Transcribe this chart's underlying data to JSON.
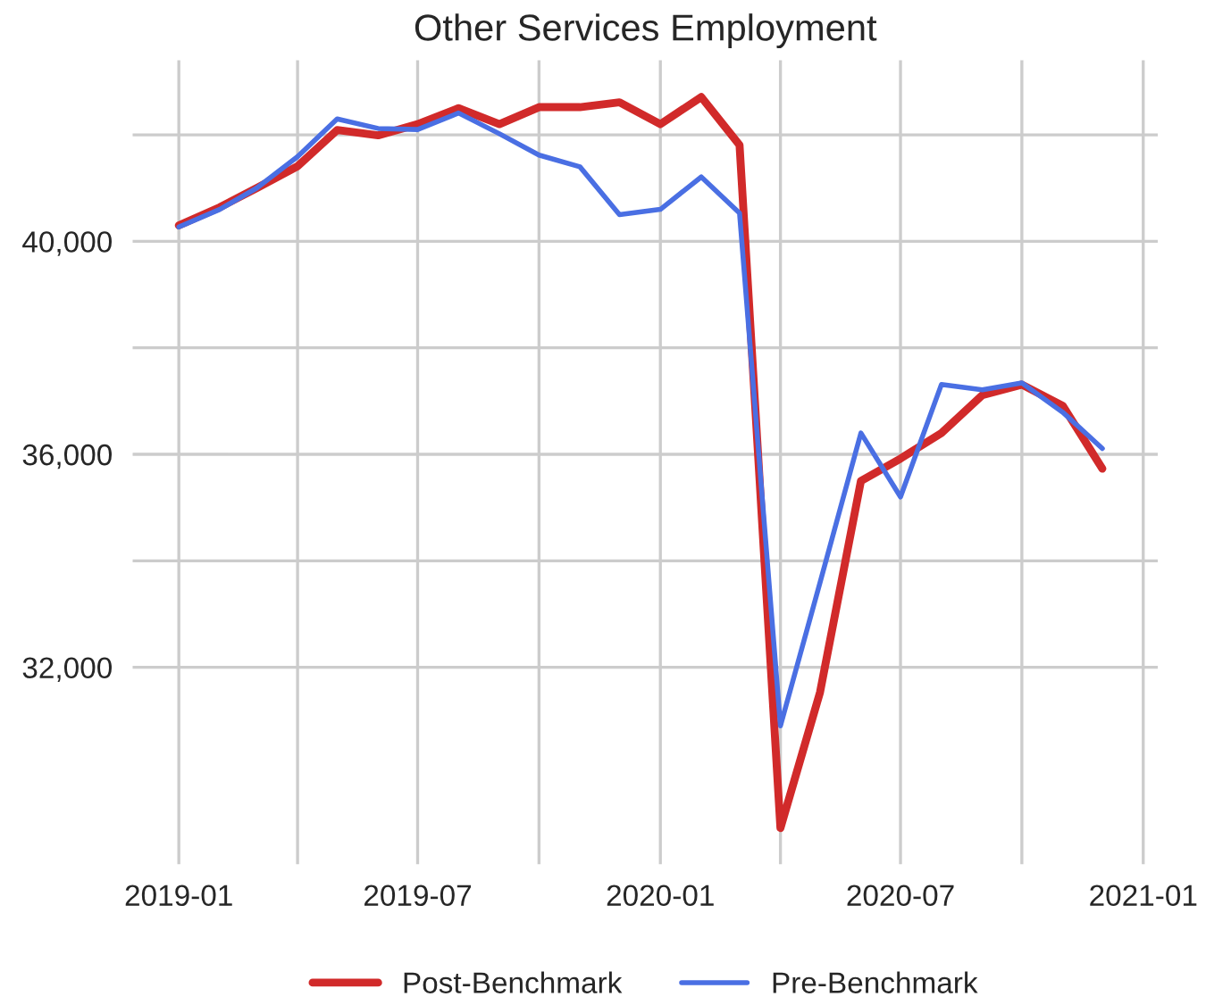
{
  "chart_data": {
    "type": "line",
    "title": "Other Services Employment",
    "x": [
      "2019-01",
      "2019-02",
      "2019-03",
      "2019-04",
      "2019-05",
      "2019-06",
      "2019-07",
      "2019-08",
      "2019-09",
      "2019-10",
      "2019-11",
      "2019-12",
      "2020-01",
      "2020-02",
      "2020-03",
      "2020-04",
      "2020-05",
      "2020-06",
      "2020-07",
      "2020-08",
      "2020-09",
      "2020-10",
      "2020-11",
      "2020-12"
    ],
    "series": [
      {
        "name": "Post-Benchmark",
        "color": "#d12a2a",
        "values": [
          40300,
          40640,
          41000,
          41410,
          42090,
          41990,
          42200,
          42500,
          42200,
          42520,
          42520,
          42610,
          42200,
          42710,
          41810,
          28980,
          31530,
          35500,
          35920,
          36400,
          37110,
          37310,
          36910,
          35730
        ]
      },
      {
        "name": "Pre-Benchmark",
        "color": "#4a6fe3",
        "values": [
          40270,
          40600,
          41000,
          41590,
          42300,
          42120,
          42100,
          42410,
          42020,
          41620,
          41400,
          40500,
          40600,
          41210,
          40530,
          30900,
          33590,
          36400,
          35200,
          37310,
          37210,
          37340,
          36790,
          36110
        ]
      }
    ],
    "xlim": [
      "2018-11-27",
      "2021-01-12"
    ],
    "xticks": [
      {
        "value": "2019-01",
        "label": "2019-01"
      },
      {
        "value": "2019-04",
        "label": null
      },
      {
        "value": "2019-07",
        "label": "2019-07"
      },
      {
        "value": "2019-10",
        "label": null
      },
      {
        "value": "2020-01",
        "label": "2020-01"
      },
      {
        "value": "2020-04",
        "label": null
      },
      {
        "value": "2020-07",
        "label": "2020-07"
      },
      {
        "value": "2020-10",
        "label": null
      },
      {
        "value": "2021-01",
        "label": "2021-01"
      }
    ],
    "ylim": [
      28300,
      43400
    ],
    "yticks": [
      {
        "value": 32000,
        "label": "32,000"
      },
      {
        "value": 34000,
        "label": null
      },
      {
        "value": 36000,
        "label": "36,000"
      },
      {
        "value": 38000,
        "label": null
      },
      {
        "value": 40000,
        "label": "40,000"
      },
      {
        "value": 42000,
        "label": null
      }
    ],
    "grid": true,
    "legend": "bottom",
    "line_style": "solid",
    "marker": "none"
  }
}
